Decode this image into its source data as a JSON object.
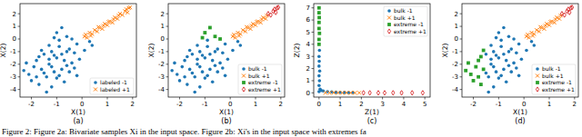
{
  "figure_caption": "Figure 2: Figure 2a: Bivariate samples Xi in the input space. Figure 2b: Xi's in the input space with extremes fa",
  "chart_data": [
    {
      "type": "scatter",
      "subtitle": "(a)",
      "x_label": "X(1)",
      "y_label": "X(2)",
      "xlim": [
        -2.45,
        2.15
      ],
      "ylim": [
        -4.6,
        2.8
      ],
      "xticks": [
        -2,
        -1,
        0,
        1,
        2
      ],
      "yticks": [
        -4,
        -3,
        -2,
        -1,
        0,
        1,
        2
      ],
      "legend": "lower right",
      "series": [
        {
          "name": "labeled -1",
          "color": "#1f77b4",
          "marker": "circle",
          "x": [
            -1.0,
            -0.8,
            -1.3,
            -0.5,
            -1.6,
            -0.9,
            -1.2,
            -0.6,
            -1.8,
            -0.3,
            -1.4,
            -0.7,
            -1.1,
            -2.1,
            -0.2,
            -1.5,
            -0.9,
            -1.7,
            -0.4,
            -1.3,
            -0.6,
            -1.0,
            -0.8,
            -1.9,
            -1.2,
            -0.5,
            -2.0,
            -1.6,
            0.1,
            0.3,
            -0.1,
            -1.4,
            -0.7,
            -1.1,
            -2.2,
            -1.5,
            -0.3,
            -0.9,
            -1.8,
            -0.4,
            -1.2,
            -0.6,
            -1.0,
            -1.7,
            0.4,
            -1.3,
            -0.8,
            -2.3,
            -0.2,
            -1.1
          ],
          "values": [
            -1.5,
            -1.2,
            -2.0,
            -0.8,
            -2.4,
            -0.6,
            -1.0,
            -2.1,
            -1.7,
            -1.1,
            -3.0,
            -1.7,
            -2.6,
            -2.8,
            -0.4,
            -1.2,
            -2.9,
            -3.6,
            -1.9,
            -0.5,
            0.2,
            0.5,
            0.9,
            -2.2,
            -3.8,
            -2.6,
            -3.3,
            -0.9,
            -0.9,
            -0.2,
            -1.6,
            -4.2,
            -3.4,
            -1.3,
            -1.9,
            -2.7,
            -2.3,
            -0.1,
            -3.0,
            0.0,
            -2.2,
            -1.0,
            -3.1,
            -1.4,
            -0.5,
            -1.6,
            -2.4,
            -2.5,
            -2.9,
            0.1
          ]
        },
        {
          "name": "labeled +1",
          "color": "#ff7f0e",
          "marker": "x",
          "x": [
            0.1,
            0.2,
            0.3,
            0.4,
            0.5,
            0.6,
            0.7,
            0.8,
            0.9,
            1.0,
            1.1,
            1.2,
            1.3,
            1.4,
            1.5,
            1.6,
            1.7,
            1.8,
            1.9,
            0.35,
            0.65,
            1.05,
            1.45,
            1.75,
            0.15,
            1.85,
            1.25,
            0.85
          ],
          "values": [
            0.2,
            0.1,
            0.5,
            0.4,
            0.7,
            0.6,
            0.9,
            0.8,
            1.2,
            1.1,
            1.4,
            1.3,
            1.7,
            1.6,
            2.0,
            1.9,
            2.2,
            2.1,
            2.5,
            0.25,
            0.95,
            1.35,
            1.85,
            2.35,
            0.35,
            2.45,
            1.55,
            1.05
          ]
        }
      ]
    },
    {
      "type": "scatter",
      "subtitle": "(b)",
      "x_label": "X(1)",
      "y_label": "X(2)",
      "xlim": [
        -2.45,
        2.15
      ],
      "ylim": [
        -4.6,
        2.8
      ],
      "xticks": [
        -2,
        -1,
        0,
        1,
        2
      ],
      "yticks": [
        -4,
        -3,
        -2,
        -1,
        0,
        1,
        2
      ],
      "legend": "lower right",
      "series": [
        {
          "name": "bulk -1",
          "color": "#1f77b4",
          "marker": "circle",
          "x": [
            -1.0,
            -0.8,
            -1.3,
            -0.5,
            -1.6,
            -0.9,
            -1.2,
            -0.6,
            -1.8,
            -0.3,
            -1.4,
            -0.7,
            -1.1,
            -2.1,
            -0.2,
            -1.5,
            -0.9,
            -1.7,
            -0.4,
            -1.3,
            -1.9,
            -1.2,
            -0.5,
            -2.0,
            -1.6,
            0.1,
            0.3,
            -0.1,
            -1.4,
            -0.7,
            -1.1,
            -2.2,
            -1.5,
            -0.3,
            -0.9,
            -1.8,
            -1.2,
            -0.6,
            -1.0,
            -1.7,
            0.4,
            -1.3,
            -0.8,
            -2.3,
            -0.2
          ],
          "values": [
            -1.5,
            -1.2,
            -2.0,
            -0.8,
            -2.4,
            -0.6,
            -1.0,
            -2.1,
            -1.7,
            -1.1,
            -3.0,
            -1.7,
            -2.6,
            -2.8,
            -0.4,
            -1.2,
            -2.9,
            -3.6,
            -1.9,
            -0.5,
            -2.2,
            -3.8,
            -2.6,
            -3.3,
            -0.9,
            -0.9,
            -0.2,
            -1.6,
            -4.2,
            -3.4,
            -1.3,
            -1.9,
            -2.7,
            -2.3,
            -0.1,
            -3.0,
            -2.2,
            -1.0,
            -3.1,
            -1.4,
            -0.5,
            -1.6,
            -2.4,
            -2.5,
            -2.9
          ]
        },
        {
          "name": "bulk +1",
          "color": "#ff7f0e",
          "marker": "x",
          "x": [
            0.1,
            0.2,
            0.3,
            0.4,
            0.5,
            0.6,
            0.7,
            0.8,
            0.9,
            1.0,
            1.1,
            1.2,
            1.3,
            1.4,
            0.35,
            0.65,
            1.05,
            1.45,
            0.15,
            1.25,
            0.85
          ],
          "values": [
            0.2,
            0.1,
            0.5,
            0.4,
            0.7,
            0.6,
            0.9,
            0.8,
            1.2,
            1.1,
            1.4,
            1.3,
            1.7,
            1.6,
            0.25,
            0.95,
            1.35,
            1.85,
            0.35,
            1.55,
            1.05
          ]
        },
        {
          "name": "extreme -1",
          "color": "#2ca02c",
          "marker": "square",
          "x": [
            -0.6,
            -1.0,
            -0.8,
            -0.4,
            -1.1
          ],
          "values": [
            0.2,
            0.5,
            0.9,
            0.0,
            0.1
          ]
        },
        {
          "name": "extreme +1",
          "color": "#d62728",
          "marker": "diamond",
          "x": [
            1.5,
            1.6,
            1.7,
            1.8,
            1.9,
            1.75,
            1.85
          ],
          "values": [
            2.0,
            1.9,
            2.2,
            2.1,
            2.5,
            2.35,
            2.45
          ]
        }
      ]
    },
    {
      "type": "scatter",
      "subtitle": "(c)",
      "x_label": "Z(1)",
      "y_label": "Z(2)",
      "xlim": [
        -0.25,
        5.25
      ],
      "ylim": [
        -0.35,
        7.35
      ],
      "xticks": [
        0,
        1,
        2,
        3,
        4,
        5
      ],
      "yticks": [
        0,
        1,
        2,
        3,
        4,
        5,
        6,
        7
      ],
      "legend": "upper right",
      "series": [
        {
          "name": "bulk -1",
          "color": "#1f77b4",
          "marker": "circle",
          "x": [
            0.0,
            0.05,
            0.0,
            0.1,
            0.02,
            0.0,
            0.03,
            0.0,
            0.01,
            0.0,
            0.02,
            0.2,
            0.4,
            0.6,
            0.8,
            1.0,
            1.2,
            1.4,
            1.6
          ],
          "values": [
            0.1,
            0.3,
            0.6,
            0.2,
            1.0,
            1.4,
            1.8,
            2.2,
            2.6,
            3.0,
            3.5,
            0.15,
            0.1,
            0.08,
            0.05,
            0.04,
            0.03,
            0.02,
            0.02
          ]
        },
        {
          "name": "bulk +1",
          "color": "#ff7f0e",
          "marker": "x",
          "x": [
            0.3,
            0.5,
            0.7,
            0.9,
            1.1,
            1.3,
            1.5,
            1.7,
            1.9
          ],
          "values": [
            0.0,
            0.0,
            0.01,
            0.0,
            0.0,
            0.0,
            0.0,
            0.0,
            0.0
          ]
        },
        {
          "name": "extreme -1",
          "color": "#2ca02c",
          "marker": "square",
          "x": [
            0.0,
            0.0,
            0.02,
            0.0,
            0.0,
            0.01,
            0.0,
            0.0
          ],
          "values": [
            4.0,
            4.4,
            4.9,
            5.3,
            5.8,
            6.2,
            6.6,
            7.0
          ]
        },
        {
          "name": "extreme +1",
          "color": "#d62728",
          "marker": "diamond",
          "x": [
            2.1,
            2.4,
            2.8,
            3.1,
            3.5,
            3.9,
            4.4,
            4.9
          ],
          "values": [
            0.0,
            0.0,
            0.0,
            0.0,
            0.0,
            0.0,
            0.0,
            0.0
          ]
        }
      ]
    },
    {
      "type": "scatter",
      "subtitle": "(d)",
      "x_label": "X(1)",
      "y_label": "X(2)",
      "xlim": [
        -2.45,
        2.15
      ],
      "ylim": [
        -4.6,
        2.8
      ],
      "xticks": [
        -2,
        -1,
        0,
        1,
        2
      ],
      "yticks": [
        -4,
        -3,
        -2,
        -1,
        0,
        1,
        2
      ],
      "legend": "lower right",
      "series": [
        {
          "name": "bulk -1",
          "color": "#1f77b4",
          "marker": "circle",
          "x": [
            -1.0,
            -0.8,
            -1.3,
            -0.5,
            -0.9,
            -1.2,
            -0.6,
            -0.3,
            -1.4,
            -0.7,
            -1.1,
            -0.2,
            -1.5,
            -0.9,
            -0.4,
            -1.3,
            -0.6,
            -1.0,
            -0.8,
            -1.2,
            -0.5,
            0.1,
            0.3,
            -0.1,
            -1.4,
            -0.7,
            -1.1,
            -1.5,
            -0.3,
            -0.9,
            -0.4,
            -1.2,
            -0.6,
            -1.0,
            0.4,
            -1.3,
            -0.8,
            -0.2,
            -1.1
          ],
          "values": [
            -1.5,
            -1.2,
            -2.0,
            -0.8,
            -0.6,
            -1.0,
            -2.1,
            -1.1,
            -3.0,
            -1.7,
            -2.6,
            -0.4,
            -1.2,
            -2.9,
            -1.9,
            -0.5,
            0.2,
            0.5,
            0.9,
            -3.8,
            -2.6,
            -0.9,
            -0.2,
            -1.6,
            -4.2,
            -3.4,
            -1.3,
            -2.7,
            -2.3,
            -0.1,
            0.0,
            -2.2,
            -1.0,
            -3.1,
            -0.5,
            -1.6,
            -2.4,
            -2.9,
            0.1
          ]
        },
        {
          "name": "bulk +1",
          "color": "#ff7f0e",
          "marker": "x",
          "x": [
            0.1,
            0.2,
            0.3,
            0.4,
            0.5,
            0.6,
            0.7,
            0.8,
            0.9,
            1.0,
            1.1,
            1.2,
            1.3,
            1.4,
            0.35,
            0.65,
            1.05,
            1.45,
            0.15,
            1.25,
            0.85
          ],
          "values": [
            0.2,
            0.1,
            0.5,
            0.4,
            0.7,
            0.6,
            0.9,
            0.8,
            1.2,
            1.1,
            1.4,
            1.3,
            1.7,
            1.6,
            0.25,
            0.95,
            1.35,
            1.85,
            0.35,
            1.55,
            1.05
          ]
        },
        {
          "name": "extreme -1",
          "color": "#2ca02c",
          "marker": "square",
          "x": [
            -1.6,
            -1.8,
            -2.1,
            -1.7,
            -1.9,
            -2.0,
            -1.6,
            -2.2,
            -1.8,
            -1.7,
            -2.3
          ],
          "values": [
            -2.4,
            -1.7,
            -2.8,
            -3.6,
            -2.2,
            -3.3,
            -0.9,
            -1.9,
            -3.0,
            -1.4,
            -2.5
          ]
        },
        {
          "name": "extreme +1",
          "color": "#d62728",
          "marker": "diamond",
          "x": [
            1.5,
            1.6,
            1.7,
            1.8,
            1.9,
            1.75,
            1.85
          ],
          "values": [
            2.0,
            1.9,
            2.2,
            2.1,
            2.5,
            2.35,
            2.45
          ]
        }
      ]
    }
  ]
}
